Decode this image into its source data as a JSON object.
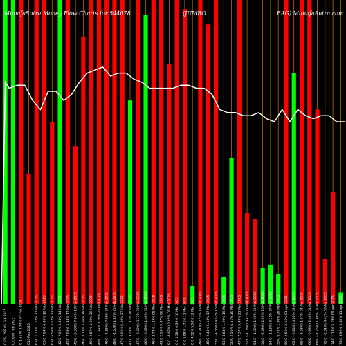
{
  "chart_data": {
    "type": "bar",
    "title": "MunafaSutra Money Flow Charts for 544078 (JUMBO BAG) MunafaSutra.com",
    "title_segments": [
      "MunafaSutra Money Flow Charts for 544078",
      "(JUMBO",
      "BAG) MunafaSutra.com"
    ],
    "colors": {
      "up": "#00ff00",
      "down": "#ff0000",
      "grid": "#cc7a00",
      "line": "#ffffff",
      "background": "#000000"
    },
    "ylim": [
      0,
      100
    ],
    "categories": [
      "05 Feb 2025",
      "06 Feb 2025",
      "07 Feb 2025",
      "10 Feb 2025",
      "11 Feb 2025",
      "12 Feb 2025",
      "13 Feb 2025",
      "14 Feb 2025",
      "17 Feb 2025",
      "18 Feb 2025",
      "19 Feb 2025",
      "20 Feb 2025",
      "21 Feb 2025",
      "24 Feb 2025",
      "25 Feb 2025",
      "27 Feb 2025",
      "28 Feb 2025",
      "03 Mar 2025",
      "04 Mar 2025",
      "05 Mar 2025",
      "06 Mar 2025",
      "07 Mar 2025",
      "10 Mar 2025",
      "11 Mar 2025",
      "12 Mar 2025",
      "13 Mar 2025",
      "17 Mar 2025",
      "18 Mar 2025",
      "19 Mar 2025",
      "20 Mar 2025",
      "21 Mar 2025",
      "24 Mar 2025",
      "25 Mar 2025",
      "26 Mar 2025",
      "27 Mar 2025",
      "28 Mar 2025",
      "01 Apr 2025",
      "02 Apr 2025",
      "03 Apr 2025",
      "04 Apr 2025",
      "07 Apr 2025",
      "08 Apr 2025",
      "09 Apr 2025",
      "11 Apr 2025"
    ],
    "tick_labels": [
      "0.0%, 298 ",
      "0.0%",
      "0 1.61 % 8.74% ",
      "0",
      "63 0 1.72% 1.72% ",
      "63 0 7.04% 4.86% ",
      "63 0 6.58% 3.62% ",
      "42 0 7.09% 3.84% ",
      "42 0 7.09% 3.84% ",
      "45 8 (-5.68%) 7.64% ",
      "46 0 2.79% 3.66% ",
      "49 0 2.87% 4.60% ",
      "49 0 11.44% 1.70% ",
      "46 0 (-4.83%) 7.06% ",
      "48 0 (-4.60%) 1.84% ",
      "47 0 9.95% 5.09% ",
      "47 0 3.29% 1.51% ",
      "47 0 (-2.32%) 3.73% ",
      "46 0 (-0.69%) 1.46% ",
      "46 0 2.73% 1.33% ",
      "41 0 2.58% 9.47% ",
      "8 0 (-1.67%) 1.85% ",
      "0 0 1.58% 0.39% ",
      "0 0 1.98% 1.71% ",
      "0 0 4.32% 5.58% ",
      "48 0 (-1.81%) 2.51% ",
      "48 0 2.45% 5.13% ",
      "53 0 (-4.58%) 4.02% ",
      "53 0 3.64% 1.09% ",
      "50 0 2.55% 4.51% ",
      "47 0 7.37% 5.49% ",
      "52 0 (-1.05%) 5.43% ",
      "54 0 (-1.89%) 1.98% ",
      "54 0 (-2.59%) 2.09% ",
      "54 0 (-1.18%) 3.21% ",
      "59 0 6.78% 2.36% ",
      "59 0 2.56% 2.15% ",
      "62 0 (-0.84%) 4.26% ",
      "65 0 (-3.03%) 1.97% ",
      "66 0 (-0.98%) 2.46% ",
      "68 0 (-1.26%) 1.86% ",
      "72 0 (-2.81%) 4.43% ",
      "74 0 1.14% 5.19% ",
      "73 0 3.90% 3.40% "
    ],
    "bars": [
      {
        "dir": "up",
        "value": 100
      },
      {
        "dir": "up",
        "value": 100
      },
      {
        "dir": "down",
        "value": 100
      },
      {
        "dir": "down",
        "value": 43
      },
      {
        "dir": "down",
        "value": 100
      },
      {
        "dir": "down",
        "value": 100
      },
      {
        "dir": "down",
        "value": 60
      },
      {
        "dir": "up",
        "value": 100
      },
      {
        "dir": "down",
        "value": 100
      },
      {
        "dir": "down",
        "value": 52
      },
      {
        "dir": "down",
        "value": 88
      },
      {
        "dir": "down",
        "value": 100
      },
      {
        "dir": "down",
        "value": 100
      },
      {
        "dir": "down",
        "value": 100
      },
      {
        "dir": "down",
        "value": 100
      },
      {
        "dir": "down",
        "value": 100
      },
      {
        "dir": "up",
        "value": 67
      },
      {
        "dir": "down",
        "value": 100
      },
      {
        "dir": "up",
        "value": 95
      },
      {
        "dir": "down",
        "value": 100
      },
      {
        "dir": "down",
        "value": 100
      },
      {
        "dir": "down",
        "value": 79
      },
      {
        "dir": "down",
        "value": 100
      },
      {
        "dir": "down",
        "value": 97
      },
      {
        "dir": "up",
        "value": 6
      },
      {
        "dir": "down",
        "value": 100
      },
      {
        "dir": "down",
        "value": 92
      },
      {
        "dir": "down",
        "value": 100
      },
      {
        "dir": "up",
        "value": 9
      },
      {
        "dir": "up",
        "value": 48
      },
      {
        "dir": "down",
        "value": 100
      },
      {
        "dir": "down",
        "value": 30
      },
      {
        "dir": "down",
        "value": 28
      },
      {
        "dir": "up",
        "value": 12
      },
      {
        "dir": "up",
        "value": 13
      },
      {
        "dir": "up",
        "value": 10
      },
      {
        "dir": "down",
        "value": 100
      },
      {
        "dir": "up",
        "value": 76
      },
      {
        "dir": "down",
        "value": 100
      },
      {
        "dir": "down",
        "value": 100
      },
      {
        "dir": "down",
        "value": 64
      },
      {
        "dir": "down",
        "value": 15
      },
      {
        "dir": "down",
        "value": 37
      },
      {
        "dir": "up",
        "value": 4
      }
    ],
    "line": [
      {
        "i": 0,
        "v": 0
      },
      {
        "i": 0.5,
        "v": 73
      },
      {
        "i": 1,
        "v": 71
      },
      {
        "i": 2,
        "v": 72
      },
      {
        "i": 3,
        "v": 72
      },
      {
        "i": 4,
        "v": 67
      },
      {
        "i": 5,
        "v": 64
      },
      {
        "i": 6,
        "v": 70
      },
      {
        "i": 7,
        "v": 70
      },
      {
        "i": 8,
        "v": 67
      },
      {
        "i": 9,
        "v": 69
      },
      {
        "i": 10,
        "v": 73
      },
      {
        "i": 11,
        "v": 76
      },
      {
        "i": 12,
        "v": 77
      },
      {
        "i": 13,
        "v": 78
      },
      {
        "i": 14,
        "v": 75
      },
      {
        "i": 15,
        "v": 76
      },
      {
        "i": 16,
        "v": 76
      },
      {
        "i": 17,
        "v": 74
      },
      {
        "i": 18,
        "v": 73
      },
      {
        "i": 19,
        "v": 71
      },
      {
        "i": 20,
        "v": 71
      },
      {
        "i": 21,
        "v": 71
      },
      {
        "i": 22,
        "v": 71
      },
      {
        "i": 23,
        "v": 72
      },
      {
        "i": 24,
        "v": 72
      },
      {
        "i": 25,
        "v": 71
      },
      {
        "i": 26,
        "v": 71
      },
      {
        "i": 27,
        "v": 69
      },
      {
        "i": 28,
        "v": 64
      },
      {
        "i": 29,
        "v": 63
      },
      {
        "i": 30,
        "v": 63
      },
      {
        "i": 31,
        "v": 62
      },
      {
        "i": 32,
        "v": 62
      },
      {
        "i": 33,
        "v": 63
      },
      {
        "i": 34,
        "v": 61
      },
      {
        "i": 35,
        "v": 60
      },
      {
        "i": 36,
        "v": 64
      },
      {
        "i": 37,
        "v": 60
      },
      {
        "i": 38,
        "v": 64
      },
      {
        "i": 39,
        "v": 62
      },
      {
        "i": 40,
        "v": 61
      },
      {
        "i": 41,
        "v": 62
      },
      {
        "i": 42,
        "v": 62
      },
      {
        "i": 43,
        "v": 60
      },
      {
        "i": 44,
        "v": 60
      }
    ]
  }
}
